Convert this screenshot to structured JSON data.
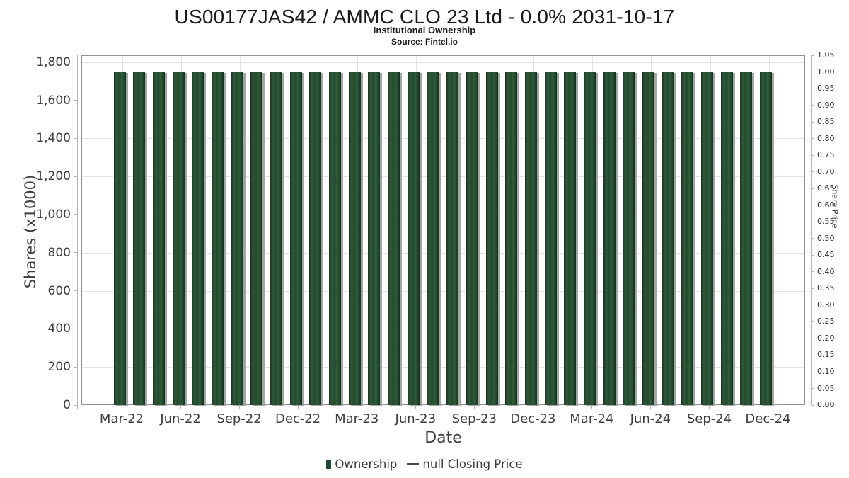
{
  "chart_data": {
    "type": "bar",
    "title": "US00177JAS42 / AMMC CLO 23 Ltd - 0.0% 2031-10-17",
    "subtitle": "Institutional Ownership",
    "source": "Source: Fintel.io",
    "xlabel": "Date",
    "ylabel_left": "Shares (x1000)",
    "ylabel_right": "Share Price",
    "grid": true,
    "legend_position": "bottom",
    "legend": [
      {
        "label": "Ownership",
        "marker": "square",
        "color": "#1f4a2b"
      },
      {
        "label": "null Closing Price",
        "marker": "dash",
        "color": "#4a4a4a"
      }
    ],
    "x_months": [
      "Mar-22",
      "Apr-22",
      "May-22",
      "Jun-22",
      "Jul-22",
      "Aug-22",
      "Sep-22",
      "Oct-22",
      "Nov-22",
      "Dec-22",
      "Jan-23",
      "Feb-23",
      "Mar-23",
      "Apr-23",
      "May-23",
      "Jun-23",
      "Jul-23",
      "Aug-23",
      "Sep-23",
      "Oct-23",
      "Nov-23",
      "Dec-23",
      "Jan-24",
      "Feb-24",
      "Mar-24",
      "Apr-24",
      "May-24",
      "Jun-24",
      "Jul-24",
      "Aug-24",
      "Sep-24",
      "Oct-24",
      "Nov-24",
      "Dec-24"
    ],
    "x_tick_labels": [
      "Mar-22",
      "Jun-22",
      "Sep-22",
      "Dec-22",
      "Mar-23",
      "Jun-23",
      "Sep-23",
      "Dec-23",
      "Mar-24",
      "Jun-24",
      "Sep-24",
      "Dec-24"
    ],
    "left_axis": {
      "min": 0,
      "max": 1836,
      "tick_values": [
        0,
        200,
        400,
        600,
        800,
        1000,
        1200,
        1400,
        1600,
        1800
      ],
      "tick_labels": [
        "0",
        "200",
        "400",
        "600",
        "800",
        "1,000",
        "1,200",
        "1,400",
        "1,600",
        "1,800"
      ]
    },
    "right_axis": {
      "min": 0,
      "max": 1.05,
      "tick_values": [
        0,
        0.05,
        0.1,
        0.15,
        0.2,
        0.25,
        0.3,
        0.35,
        0.4,
        0.45,
        0.5,
        0.55,
        0.6,
        0.65,
        0.7,
        0.75,
        0.8,
        0.85,
        0.9,
        0.95,
        1.0,
        1.05
      ],
      "tick_labels": [
        "0.00",
        "0.05",
        "0.10",
        "0.15",
        "0.20",
        "0.25",
        "0.30",
        "0.35",
        "0.40",
        "0.45",
        "0.50",
        "0.55",
        "0.60",
        "0.65",
        "0.70",
        "0.75",
        "0.80",
        "0.85",
        "0.90",
        "0.95",
        "1.00",
        "1.05"
      ]
    },
    "series": [
      {
        "name": "Ownership",
        "type": "bar",
        "unit": "shares x1000",
        "values": [
          1756,
          1756,
          1756,
          1756,
          1756,
          1756,
          1756,
          1756,
          1756,
          1756,
          1756,
          1756,
          1756,
          1756,
          1756,
          1756,
          1756,
          1756,
          1756,
          1756,
          1756,
          1756,
          1756,
          1756,
          1756,
          1756,
          1756,
          1756,
          1756,
          1756,
          1756,
          1756,
          1756,
          1756
        ]
      },
      {
        "name": "null Closing Price",
        "type": "line",
        "values": []
      }
    ]
  },
  "style": {
    "bar_color": "#24492d",
    "bar_shadow": "#a5a5a5",
    "grid_color": "#e3e3e3",
    "frame_color": "#8f8f8f",
    "text_color": "#3d3d3d",
    "title_color": "#1a1a1a",
    "background": "#ffffff"
  }
}
